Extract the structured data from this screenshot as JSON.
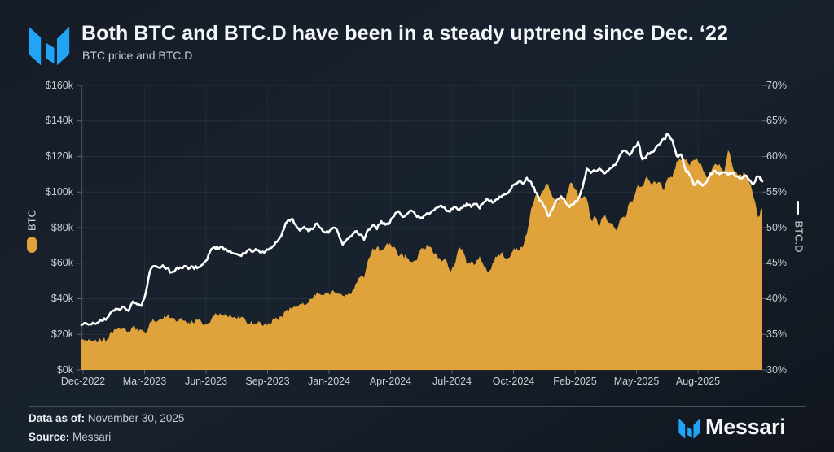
{
  "header": {
    "title": "Both BTC and BTC.D have been in a steady uptrend since Dec. ‘22",
    "subtitle": "BTC price and BTC.D"
  },
  "chart_data": {
    "type": "combo-area-line",
    "x_unit": "weekly samples",
    "x_start": "Dec-2022",
    "x_end": "Nov-2025",
    "x_tick_labels": [
      "Dec-2022",
      "Mar-2023",
      "Jun-2023",
      "Sep-2023",
      "Jan-2024",
      "Apr-2024",
      "Jul-2024",
      "Oct-2024",
      "Feb-2025",
      "May-2025",
      "Aug-2025"
    ],
    "grid": true,
    "left_axis": {
      "label": "BTC",
      "unit": "USD (thousands)",
      "range": [
        0,
        160
      ],
      "tick_labels": [
        "$160k",
        "$140k",
        "$120k",
        "$100k",
        "$80k",
        "$60k",
        "$40k",
        "$20k",
        "$0k"
      ]
    },
    "right_axis": {
      "label": "BTC.D",
      "unit": "%",
      "range": [
        30,
        70
      ],
      "tick_labels": [
        "70%",
        "65%",
        "60%",
        "55%",
        "50%",
        "45%",
        "40%",
        "35%",
        "30%"
      ]
    },
    "series": [
      {
        "name": "BTC",
        "type": "area",
        "color": "#e0a23b",
        "unit": "$k",
        "values": [
          16.9,
          17.1,
          16.8,
          16.6,
          16.6,
          17.0,
          17.3,
          20.9,
          22.7,
          23.0,
          23.3,
          21.8,
          24.3,
          23.2,
          22.4,
          20.5,
          26.9,
          27.5,
          28.0,
          28.3,
          30.3,
          29.4,
          27.6,
          28.9,
          27.7,
          26.8,
          26.7,
          28.1,
          27.1,
          25.9,
          26.5,
          30.5,
          30.4,
          30.6,
          30.3,
          29.9,
          29.4,
          29.0,
          29.4,
          26.1,
          26.0,
          25.9,
          25.8,
          26.5,
          26.2,
          28.0,
          27.9,
          29.7,
          33.9,
          34.5,
          35.4,
          37.1,
          36.6,
          37.8,
          40.0,
          43.8,
          41.9,
          43.6,
          42.1,
          44.0,
          42.9,
          41.7,
          42.0,
          42.6,
          48.3,
          52.1,
          51.7,
          62.5,
          68.5,
          69.0,
          67.2,
          69.6,
          71.3,
          69.4,
          63.8,
          64.9,
          63.1,
          60.8,
          61.5,
          66.9,
          68.5,
          69.3,
          66.7,
          64.3,
          61.0,
          62.7,
          55.9,
          58.2,
          67.9,
          68.0,
          58.7,
          60.9,
          59.5,
          64.0,
          58.2,
          54.8,
          60.0,
          63.3,
          65.6,
          62.8,
          63.2,
          68.4,
          67.0,
          68.8,
          76.5,
          90.6,
          98.0,
          97.5,
          101.2,
          104.4,
          97.2,
          94.2,
          98.3,
          94.5,
          104.5,
          102.6,
          97.7,
          96.6,
          96.1,
          84.4,
          86.1,
          80.7,
          86.8,
          82.6,
          82.4,
          78.4,
          85.2,
          85.2,
          94.0,
          96.9,
          104.1,
          103.2,
          109.0,
          104.6,
          105.6,
          105.5,
          101.0,
          108.3,
          108.2,
          117.4,
          117.9,
          118.0,
          114.8,
          118.3,
          117.3,
          113.5,
          108.2,
          111.2,
          115.9,
          115.8,
          109.6,
          123.5,
          115.0,
          110.9,
          109.8,
          110.1,
          105.0,
          96.6,
          86.0,
          91.3
        ]
      },
      {
        "name": "BTC.D",
        "type": "line",
        "color": "#ffffff",
        "unit": "%",
        "values": [
          36.3,
          36.6,
          36.4,
          36.5,
          36.7,
          36.9,
          37.3,
          38.2,
          38.6,
          38.4,
          38.8,
          38.3,
          39.6,
          39.2,
          39.0,
          40.8,
          43.9,
          44.6,
          44.4,
          44.7,
          44.3,
          43.7,
          44.1,
          44.4,
          44.6,
          44.2,
          44.5,
          44.3,
          44.7,
          45.3,
          46.6,
          47.3,
          47.0,
          47.2,
          46.8,
          46.5,
          46.3,
          46.1,
          46.4,
          46.9,
          46.6,
          46.8,
          46.5,
          46.7,
          47.1,
          47.5,
          48.3,
          49.5,
          50.8,
          51.2,
          50.4,
          49.6,
          50.1,
          49.5,
          49.8,
          50.6,
          49.9,
          49.3,
          49.6,
          50.0,
          49.2,
          47.6,
          48.4,
          48.8,
          49.5,
          49.0,
          48.3,
          49.7,
          50.3,
          49.8,
          50.9,
          50.4,
          50.7,
          51.6,
          52.3,
          51.5,
          51.9,
          52.4,
          51.8,
          51.3,
          51.7,
          52.0,
          52.4,
          52.8,
          53.1,
          52.6,
          52.2,
          52.9,
          52.5,
          52.8,
          53.4,
          52.9,
          53.3,
          52.7,
          53.6,
          53.9,
          53.5,
          54.0,
          54.3,
          54.7,
          55.2,
          56.0,
          56.4,
          56.2,
          57.0,
          56.4,
          55.0,
          53.8,
          53.0,
          51.6,
          52.6,
          53.9,
          54.4,
          53.6,
          52.9,
          53.3,
          54.0,
          55.6,
          58.3,
          57.7,
          57.9,
          58.3,
          57.6,
          58.0,
          58.5,
          59.2,
          60.4,
          60.8,
          60.2,
          61.3,
          62.0,
          59.6,
          60.1,
          60.6,
          61.1,
          61.7,
          62.5,
          63.1,
          62.3,
          60.1,
          60.3,
          58.2,
          57.4,
          56.0,
          56.5,
          55.9,
          56.4,
          57.6,
          58.0,
          57.5,
          57.8,
          57.4,
          57.7,
          57.2,
          56.9,
          57.3,
          56.7,
          56.2,
          57.2,
          56.5
        ]
      }
    ]
  },
  "footer": {
    "data_as_of_label": "Data as of:",
    "data_as_of_value": "November 30, 2025",
    "source_label": "Source:",
    "source_value": "Messari",
    "brand_wordmark": "Messari"
  },
  "colors": {
    "background": "#151c26",
    "accent_orange": "#e0a23b",
    "line_white": "#ffffff",
    "logo_blue": "#22a4f6",
    "text_primary": "#f3f6f9",
    "text_secondary": "#c5ccd4"
  }
}
